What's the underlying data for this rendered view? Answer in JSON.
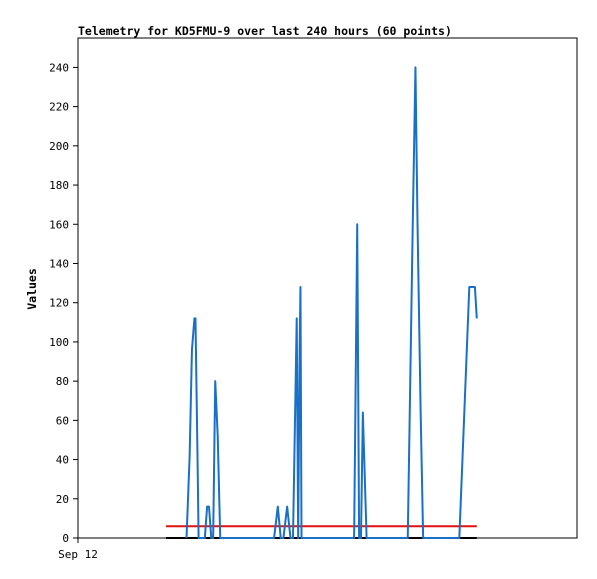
{
  "chart_data": {
    "type": "line",
    "title": "Telemetry for KD5FMU-9 over last 240 hours (60 points)",
    "xlabel": "",
    "ylabel": "Values",
    "x_tick_labels": [
      "Sep 12"
    ],
    "y_ticks": [
      0,
      20,
      40,
      60,
      80,
      100,
      120,
      140,
      160,
      180,
      200,
      220,
      240
    ],
    "xlim": [
      0,
      240
    ],
    "ylim": [
      0,
      255
    ],
    "grid": false,
    "legend": "none",
    "series": [
      {
        "color": "#1a6fc6",
        "points": [
          [
            52.2,
            0
          ],
          [
            53.7,
            42
          ],
          [
            54.8,
            96
          ],
          [
            56.0,
            112
          ],
          [
            56.5,
            112
          ],
          [
            57.5,
            40
          ],
          [
            58.0,
            0
          ],
          [
            61.0,
            0
          ],
          [
            62.1,
            16
          ],
          [
            63.0,
            16
          ],
          [
            64.1,
            0
          ],
          [
            65.0,
            0
          ],
          [
            66.0,
            80
          ],
          [
            67.2,
            52
          ],
          [
            68.4,
            0
          ],
          [
            94.3,
            0
          ],
          [
            96.1,
            16
          ],
          [
            97.5,
            0
          ],
          [
            98.8,
            0
          ],
          [
            100.6,
            16
          ],
          [
            102.2,
            0
          ],
          [
            103.4,
            0
          ],
          [
            105.2,
            112
          ],
          [
            105.9,
            0
          ],
          [
            106.6,
            96
          ],
          [
            107.0,
            128
          ],
          [
            107.5,
            0
          ],
          [
            132.8,
            0
          ],
          [
            134.3,
            160
          ],
          [
            135.2,
            0
          ],
          [
            136.1,
            0
          ],
          [
            137.0,
            64
          ],
          [
            138.8,
            0
          ],
          [
            158.6,
            0
          ],
          [
            161.0,
            160
          ],
          [
            162.3,
            240
          ],
          [
            163.3,
            160
          ],
          [
            164.8,
            64
          ],
          [
            166.0,
            0
          ],
          [
            183.4,
            0
          ],
          [
            185.8,
            64
          ],
          [
            188.2,
            128
          ],
          [
            190.9,
            128
          ],
          [
            191.8,
            112
          ]
        ]
      },
      {
        "color": "#e01010",
        "points": [
          [
            42.3,
            6
          ],
          [
            191.8,
            6
          ]
        ]
      },
      {
        "color": "#000000",
        "points": [
          [
            42.3,
            0
          ],
          [
            191.8,
            0
          ]
        ]
      }
    ]
  }
}
